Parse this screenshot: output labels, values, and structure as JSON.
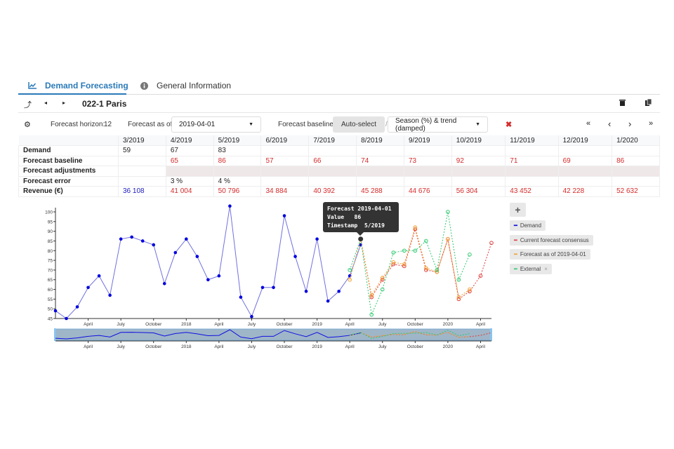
{
  "tabs": [
    {
      "label": "Demand Forecasting",
      "icon": "chart-line-icon",
      "active": true
    },
    {
      "label": "General Information",
      "icon": "info-icon",
      "active": false
    }
  ],
  "toolbar": {
    "title": "022-1 Paris"
  },
  "controls": {
    "horizon_label": "Forecast horizon:",
    "horizon_value": "12",
    "asof_label": "Forecast as of:",
    "asof_value": "2019-04-01",
    "baseline_label": "Forecast baseline:",
    "autoselect_label": "Auto-select",
    "slash": "/",
    "method_value": "Season (%) & trend (damped)",
    "nav": [
      "«",
      "‹",
      "›",
      "»"
    ]
  },
  "table": {
    "columns": [
      "3/2019",
      "4/2019",
      "5/2019",
      "6/2019",
      "7/2019",
      "8/2019",
      "9/2019",
      "10/2019",
      "11/2019",
      "12/2019",
      "1/2020"
    ],
    "rows": [
      {
        "label": "Demand",
        "cells": [
          "59",
          "67",
          "83",
          "",
          "",
          "",
          "",
          "",
          "",
          "",
          ""
        ]
      },
      {
        "label": "Forecast baseline",
        "cells": [
          "",
          "65",
          "86",
          "57",
          "66",
          "74",
          "73",
          "92",
          "71",
          "69",
          "86"
        ]
      },
      {
        "label": "Forecast adjustments",
        "cells": [
          "",
          "",
          "",
          "",
          "",
          "",
          "",
          "",
          "",
          "",
          ""
        ]
      },
      {
        "label": "Forecast error",
        "cells": [
          "",
          "3 %",
          "4 %",
          "",
          "",
          "",
          "",
          "",
          "",
          "",
          ""
        ]
      },
      {
        "label": "Revenue (€)",
        "cells": [
          "36 108",
          "41 004",
          "50 796",
          "34 884",
          "40 392",
          "45 288",
          "44 676",
          "56 304",
          "43 452",
          "42 228",
          "52 632"
        ]
      }
    ]
  },
  "tooltip": {
    "line1": "Forecast 2019-04-01",
    "line2": "Value   86",
    "line3": "Timestamp  5/2019"
  },
  "legend": {
    "add": "+",
    "items": [
      {
        "label": "Demand",
        "color": "#1010e0"
      },
      {
        "label": "Current forecast consensus",
        "color": "#e03a3a"
      },
      {
        "label": "Forecast as of 2019-04-01",
        "color": "#f0a030"
      },
      {
        "label": "External",
        "color": "#30c870",
        "removable": "×"
      }
    ]
  },
  "chart_data": {
    "type": "line",
    "x_start": "2017-01",
    "x_end": "2020-05",
    "ylim": [
      45,
      102
    ],
    "yticks": [
      45,
      50,
      55,
      60,
      65,
      70,
      75,
      80,
      85,
      90,
      95,
      100
    ],
    "xticks": [
      {
        "m": "2017-04",
        "label": "April"
      },
      {
        "m": "2017-07",
        "label": "July"
      },
      {
        "m": "2017-10",
        "label": "October"
      },
      {
        "m": "2018-01",
        "label": "2018"
      },
      {
        "m": "2018-04",
        "label": "April"
      },
      {
        "m": "2018-07",
        "label": "July"
      },
      {
        "m": "2018-10",
        "label": "October"
      },
      {
        "m": "2019-01",
        "label": "2019"
      },
      {
        "m": "2019-04",
        "label": "April"
      },
      {
        "m": "2019-07",
        "label": "July"
      },
      {
        "m": "2019-10",
        "label": "October"
      },
      {
        "m": "2020-01",
        "label": "2020"
      },
      {
        "m": "2020-04",
        "label": "April"
      }
    ],
    "series": [
      {
        "name": "Demand",
        "start": "2017-01",
        "color": "#1010e0",
        "style": "solid",
        "values": [
          49,
          45,
          51,
          61,
          67,
          57,
          86,
          87,
          85,
          83,
          63,
          79,
          86,
          77,
          65,
          67,
          103,
          56,
          46,
          61,
          61,
          98,
          77,
          59,
          86,
          54,
          59,
          67,
          83
        ]
      },
      {
        "name": "Current forecast consensus",
        "start": "2019-05",
        "color": "#e03a3a",
        "style": "dashed",
        "values": [
          86,
          56,
          65,
          73,
          72,
          91,
          70,
          69,
          86,
          55,
          59,
          67,
          84
        ]
      },
      {
        "name": "Forecast as of 2019-04-01",
        "start": "2019-04",
        "color": "#f0a030",
        "style": "dashed",
        "values": [
          65,
          86,
          57,
          66,
          74,
          73,
          92,
          71,
          69,
          86,
          56,
          60
        ]
      },
      {
        "name": "External",
        "start": "2019-04",
        "color": "#30c870",
        "style": "dashed",
        "values": [
          70,
          86,
          47,
          60,
          79,
          80,
          80,
          85,
          70,
          100,
          65,
          78
        ]
      }
    ]
  }
}
